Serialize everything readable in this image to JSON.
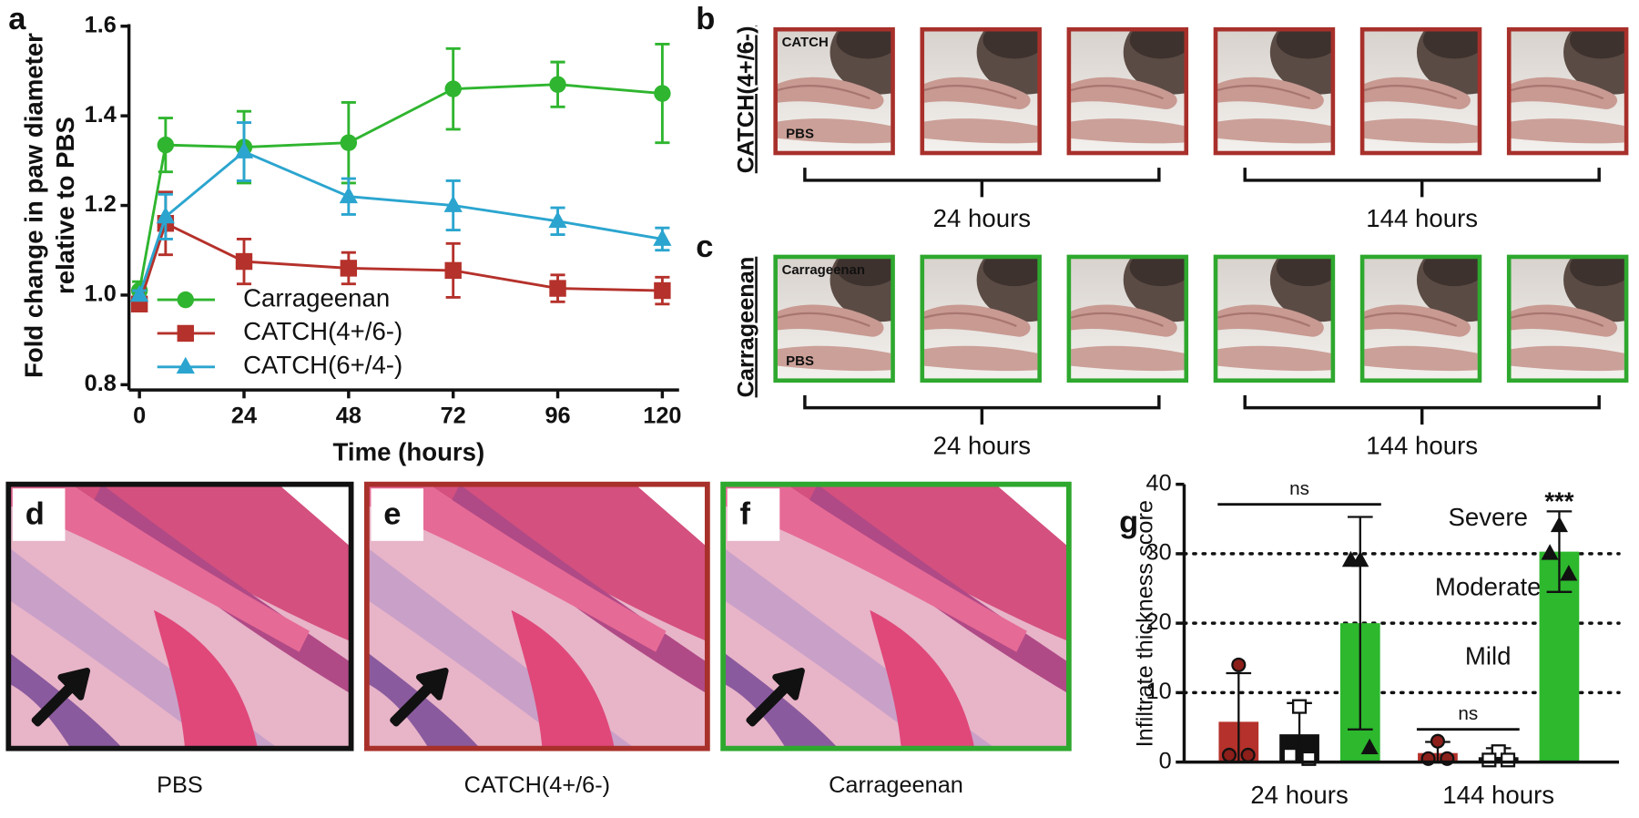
{
  "chart_data": [
    {
      "type": "line",
      "panel": "a",
      "ylabel": [
        "Fold change in paw diameter",
        "relative to PBS"
      ],
      "xlabel": "Time (hours)",
      "x": [
        0,
        6,
        24,
        48,
        72,
        96,
        120
      ],
      "series": [
        {
          "name": "Carrageenan",
          "color": "#2fb52f",
          "marker": "circle",
          "values": [
            1.01,
            1.335,
            1.33,
            1.34,
            1.46,
            1.47,
            1.45
          ],
          "errors": [
            0.02,
            0.06,
            0.08,
            0.09,
            0.09,
            0.05,
            0.11
          ]
        },
        {
          "name": "CATCH(4+/6-)",
          "color": "#b5312b",
          "marker": "square",
          "values": [
            0.98,
            1.16,
            1.075,
            1.06,
            1.055,
            1.015,
            1.01
          ],
          "errors": [
            0.01,
            0.07,
            0.05,
            0.035,
            0.06,
            0.03,
            0.03
          ]
        },
        {
          "name": "CATCH(6+/4-)",
          "color": "#2ba5cf",
          "marker": "triangle",
          "values": [
            1.0,
            1.175,
            1.32,
            1.22,
            1.2,
            1.165,
            1.125
          ],
          "errors": [
            0.01,
            0.05,
            0.065,
            0.04,
            0.055,
            0.03,
            0.025
          ]
        }
      ],
      "xlim": [
        0,
        120
      ],
      "xticks": [
        0,
        24,
        48,
        72,
        96,
        120
      ],
      "ylim": [
        0.8,
        1.6
      ],
      "yticks": [
        0.8,
        {
          "value": 1.0,
          "label": "1.0"
        },
        1.2,
        1.4,
        1.6
      ]
    },
    {
      "type": "bar",
      "panel": "g",
      "ylabel": "Infiltrate thickness score",
      "categories": [
        "24 hours",
        "144 hours"
      ],
      "series": [
        {
          "color": "#b5312b",
          "marker": "circle",
          "point_fill": "#8c1f1a",
          "values": [
            5.8,
            1.3
          ],
          "errors": [
            7,
            1.6
          ],
          "points": [
            [
              14,
              1,
              1
            ],
            [
              3,
              0.5,
              0.5
            ]
          ]
        },
        {
          "color": "#111111",
          "marker": "square",
          "point_fill": "#ffffff",
          "values": [
            4,
            0.7
          ],
          "errors": [
            4.5,
            1.3
          ],
          "points": [
            [
              8,
              1,
              0.5
            ],
            [
              1.5,
              0.3,
              0.3
            ]
          ]
        },
        {
          "color": "#2db82d",
          "marker": "triangle",
          "point_fill": "#111111",
          "values": [
            20,
            30.3
          ],
          "errors": [
            15.3,
            5.8
          ],
          "points": [
            [
              29,
              29,
              2
            ],
            [
              34,
              30,
              27
            ]
          ]
        }
      ],
      "ylim": [
        0,
        40
      ],
      "yticks": [
        0,
        10,
        20,
        30,
        40
      ],
      "grid": "dotted",
      "zones": [
        {
          "label": "Mild",
          "from": 10,
          "to": 20
        },
        {
          "label": "Moderate",
          "from": 20,
          "to": 30
        },
        {
          "label": "Severe",
          "from": 30,
          "to": 40
        }
      ],
      "comparisons": [
        {
          "label": "ns",
          "category": 0,
          "series": [
            0,
            1,
            2
          ]
        },
        {
          "label": "ns",
          "category": 1,
          "series": [
            0,
            1
          ]
        },
        {
          "label": "***",
          "category": 1,
          "series": [
            2
          ]
        }
      ]
    }
  ],
  "photo_rows": [
    {
      "letter": "b",
      "row_label": "CATCH(4+/6-)",
      "top_tag": "CATCH",
      "bottom_tag": "PBS",
      "color": "#a8302b",
      "groups": [
        "24 hours",
        "144 hours"
      ]
    },
    {
      "letter": "c",
      "row_label": "Carrageenan",
      "top_tag": "Carrageenan",
      "bottom_tag": "PBS",
      "color": "#2ea82e",
      "groups": [
        "24 hours",
        "144 hours"
      ]
    }
  ],
  "histology": [
    {
      "letter": "d",
      "caption": "PBS",
      "color": "#111111"
    },
    {
      "letter": "e",
      "caption": "CATCH(4+/6-)",
      "color": "#a8302b"
    },
    {
      "letter": "f",
      "caption": "Carrageenan",
      "color": "#2ea82e"
    }
  ]
}
